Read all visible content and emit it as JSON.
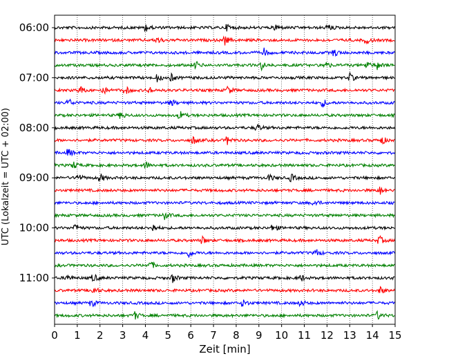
{
  "chart_data": {
    "type": "line",
    "title": "",
    "xlabel": "Zeit  [min]",
    "ylabel": "UTC (Lokalzeit = UTC + 02:00)",
    "xlim": [
      0,
      15
    ],
    "xticks": [
      "0",
      "1",
      "2",
      "3",
      "4",
      "5",
      "6",
      "7",
      "8",
      "9",
      "10",
      "11",
      "12",
      "13",
      "14",
      "15"
    ],
    "yticks": [
      "06:00",
      "07:00",
      "08:00",
      "09:00",
      "10:00",
      "11:00"
    ],
    "grid": true,
    "trace_colors": [
      "#000000",
      "#ff0000",
      "#0000ff",
      "#008000"
    ],
    "traces": [
      {
        "start": "06:00",
        "events_min": [
          4.0,
          7.6,
          9.7,
          12.0
        ]
      },
      {
        "start": "06:15",
        "events_min": [
          4.5,
          7.5,
          13.7
        ]
      },
      {
        "start": "06:30",
        "events_min": [
          9.2,
          12.3
        ]
      },
      {
        "start": "06:45",
        "events_min": [
          6.2,
          9.1,
          11.9,
          13.7,
          14.2
        ]
      },
      {
        "start": "07:00",
        "events_min": [
          4.5,
          5.1,
          13.0
        ]
      },
      {
        "start": "07:15",
        "events_min": [
          1.1,
          2.1,
          3.1,
          4.1,
          7.6
        ]
      },
      {
        "start": "07:30",
        "events_min": [
          0.6,
          5.1,
          11.8
        ]
      },
      {
        "start": "07:45",
        "events_min": [
          2.9,
          5.5
        ]
      },
      {
        "start": "08:00",
        "events_min": [
          8.9
        ]
      },
      {
        "start": "08:15",
        "events_min": [
          6.1,
          7.6,
          14.4
        ]
      },
      {
        "start": "08:30",
        "events_min": [
          0.6
        ]
      },
      {
        "start": "08:45",
        "events_min": [
          0.8,
          4.0
        ]
      },
      {
        "start": "09:00",
        "events_min": [
          1.0,
          2.0,
          9.4,
          10.4
        ]
      },
      {
        "start": "09:15",
        "events_min": [
          14.3
        ]
      },
      {
        "start": "09:30",
        "events_min": [
          11.4
        ]
      },
      {
        "start": "09:45",
        "events_min": [
          4.8
        ]
      },
      {
        "start": "10:00",
        "events_min": [
          0.9,
          4.3,
          9.6
        ]
      },
      {
        "start": "10:15",
        "events_min": [
          6.5,
          14.3
        ]
      },
      {
        "start": "10:30",
        "events_min": [
          5.9,
          11.5
        ]
      },
      {
        "start": "10:45",
        "events_min": [
          4.2
        ]
      },
      {
        "start": "11:00",
        "events_min": [
          0.5,
          1.7,
          5.2,
          10.8
        ]
      },
      {
        "start": "11:15",
        "events_min": [
          1.7,
          14.3
        ]
      },
      {
        "start": "11:30",
        "events_min": [
          1.6,
          8.3,
          10.8
        ]
      },
      {
        "start": "11:45",
        "events_min": [
          3.5,
          14.2
        ]
      }
    ]
  }
}
